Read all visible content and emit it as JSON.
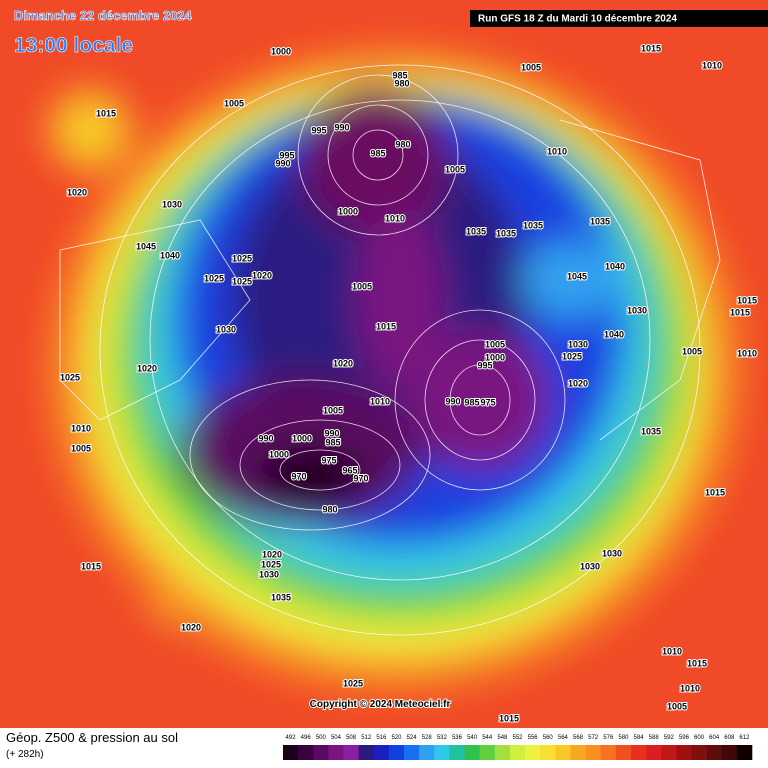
{
  "header": {
    "title": "Dimanche 22 décembre 2024",
    "time": "13:00 locale",
    "run": "Run GFS 18 Z du Mardi 10 décembre 2024"
  },
  "copyright": "Copyright © 2024 Meteociel.fr",
  "footer": {
    "title": "Géop. Z500 & pression au sol",
    "forecast_hour": "(+ 282h)"
  },
  "colorbar": {
    "values": [
      492,
      496,
      500,
      504,
      508,
      512,
      516,
      520,
      524,
      528,
      532,
      536,
      540,
      544,
      548,
      552,
      556,
      560,
      564,
      568,
      572,
      576,
      580,
      584,
      588,
      592,
      596,
      600,
      604,
      608,
      612
    ],
    "colors": [
      "#1a0018",
      "#3a0040",
      "#5a0a60",
      "#7a1480",
      "#8a20a0",
      "#2a1a80",
      "#1a20c0",
      "#1040e0",
      "#1870f0",
      "#30a0f0",
      "#30c8e8",
      "#20c0a0",
      "#30c050",
      "#60d040",
      "#a0e040",
      "#d0f040",
      "#f0f040",
      "#f8e030",
      "#f8c828",
      "#f8a820",
      "#f89020",
      "#f87020",
      "#f05020",
      "#e83020",
      "#d82020",
      "#c01818",
      "#a01010",
      "#801010",
      "#600c0c",
      "#400808",
      "#100000"
    ]
  },
  "pressure_labels": [
    1000,
    985,
    980,
    1005,
    1015,
    1010,
    1005,
    1015,
    995,
    990,
    985,
    980,
    995,
    990,
    1005,
    1010,
    1020,
    1030,
    1000,
    1010,
    1035,
    1035,
    1035,
    1035,
    1045,
    1040,
    1025,
    1020,
    1025,
    1025,
    1045,
    1040,
    1005,
    1015,
    1015,
    1030,
    1015,
    1030,
    1040,
    1005,
    1000,
    995,
    1030,
    1025,
    1005,
    1010,
    1020,
    1020,
    1025,
    990,
    985,
    975,
    1020,
    1010,
    1005,
    1010,
    990,
    1000,
    990,
    985,
    1035,
    1005,
    1000,
    975,
    965,
    970,
    970,
    1015,
    980,
    1020,
    1025,
    1030,
    1030,
    1030,
    1015,
    1035,
    1020,
    1010,
    1015,
    1010,
    1025,
    1005,
    1015
  ]
}
